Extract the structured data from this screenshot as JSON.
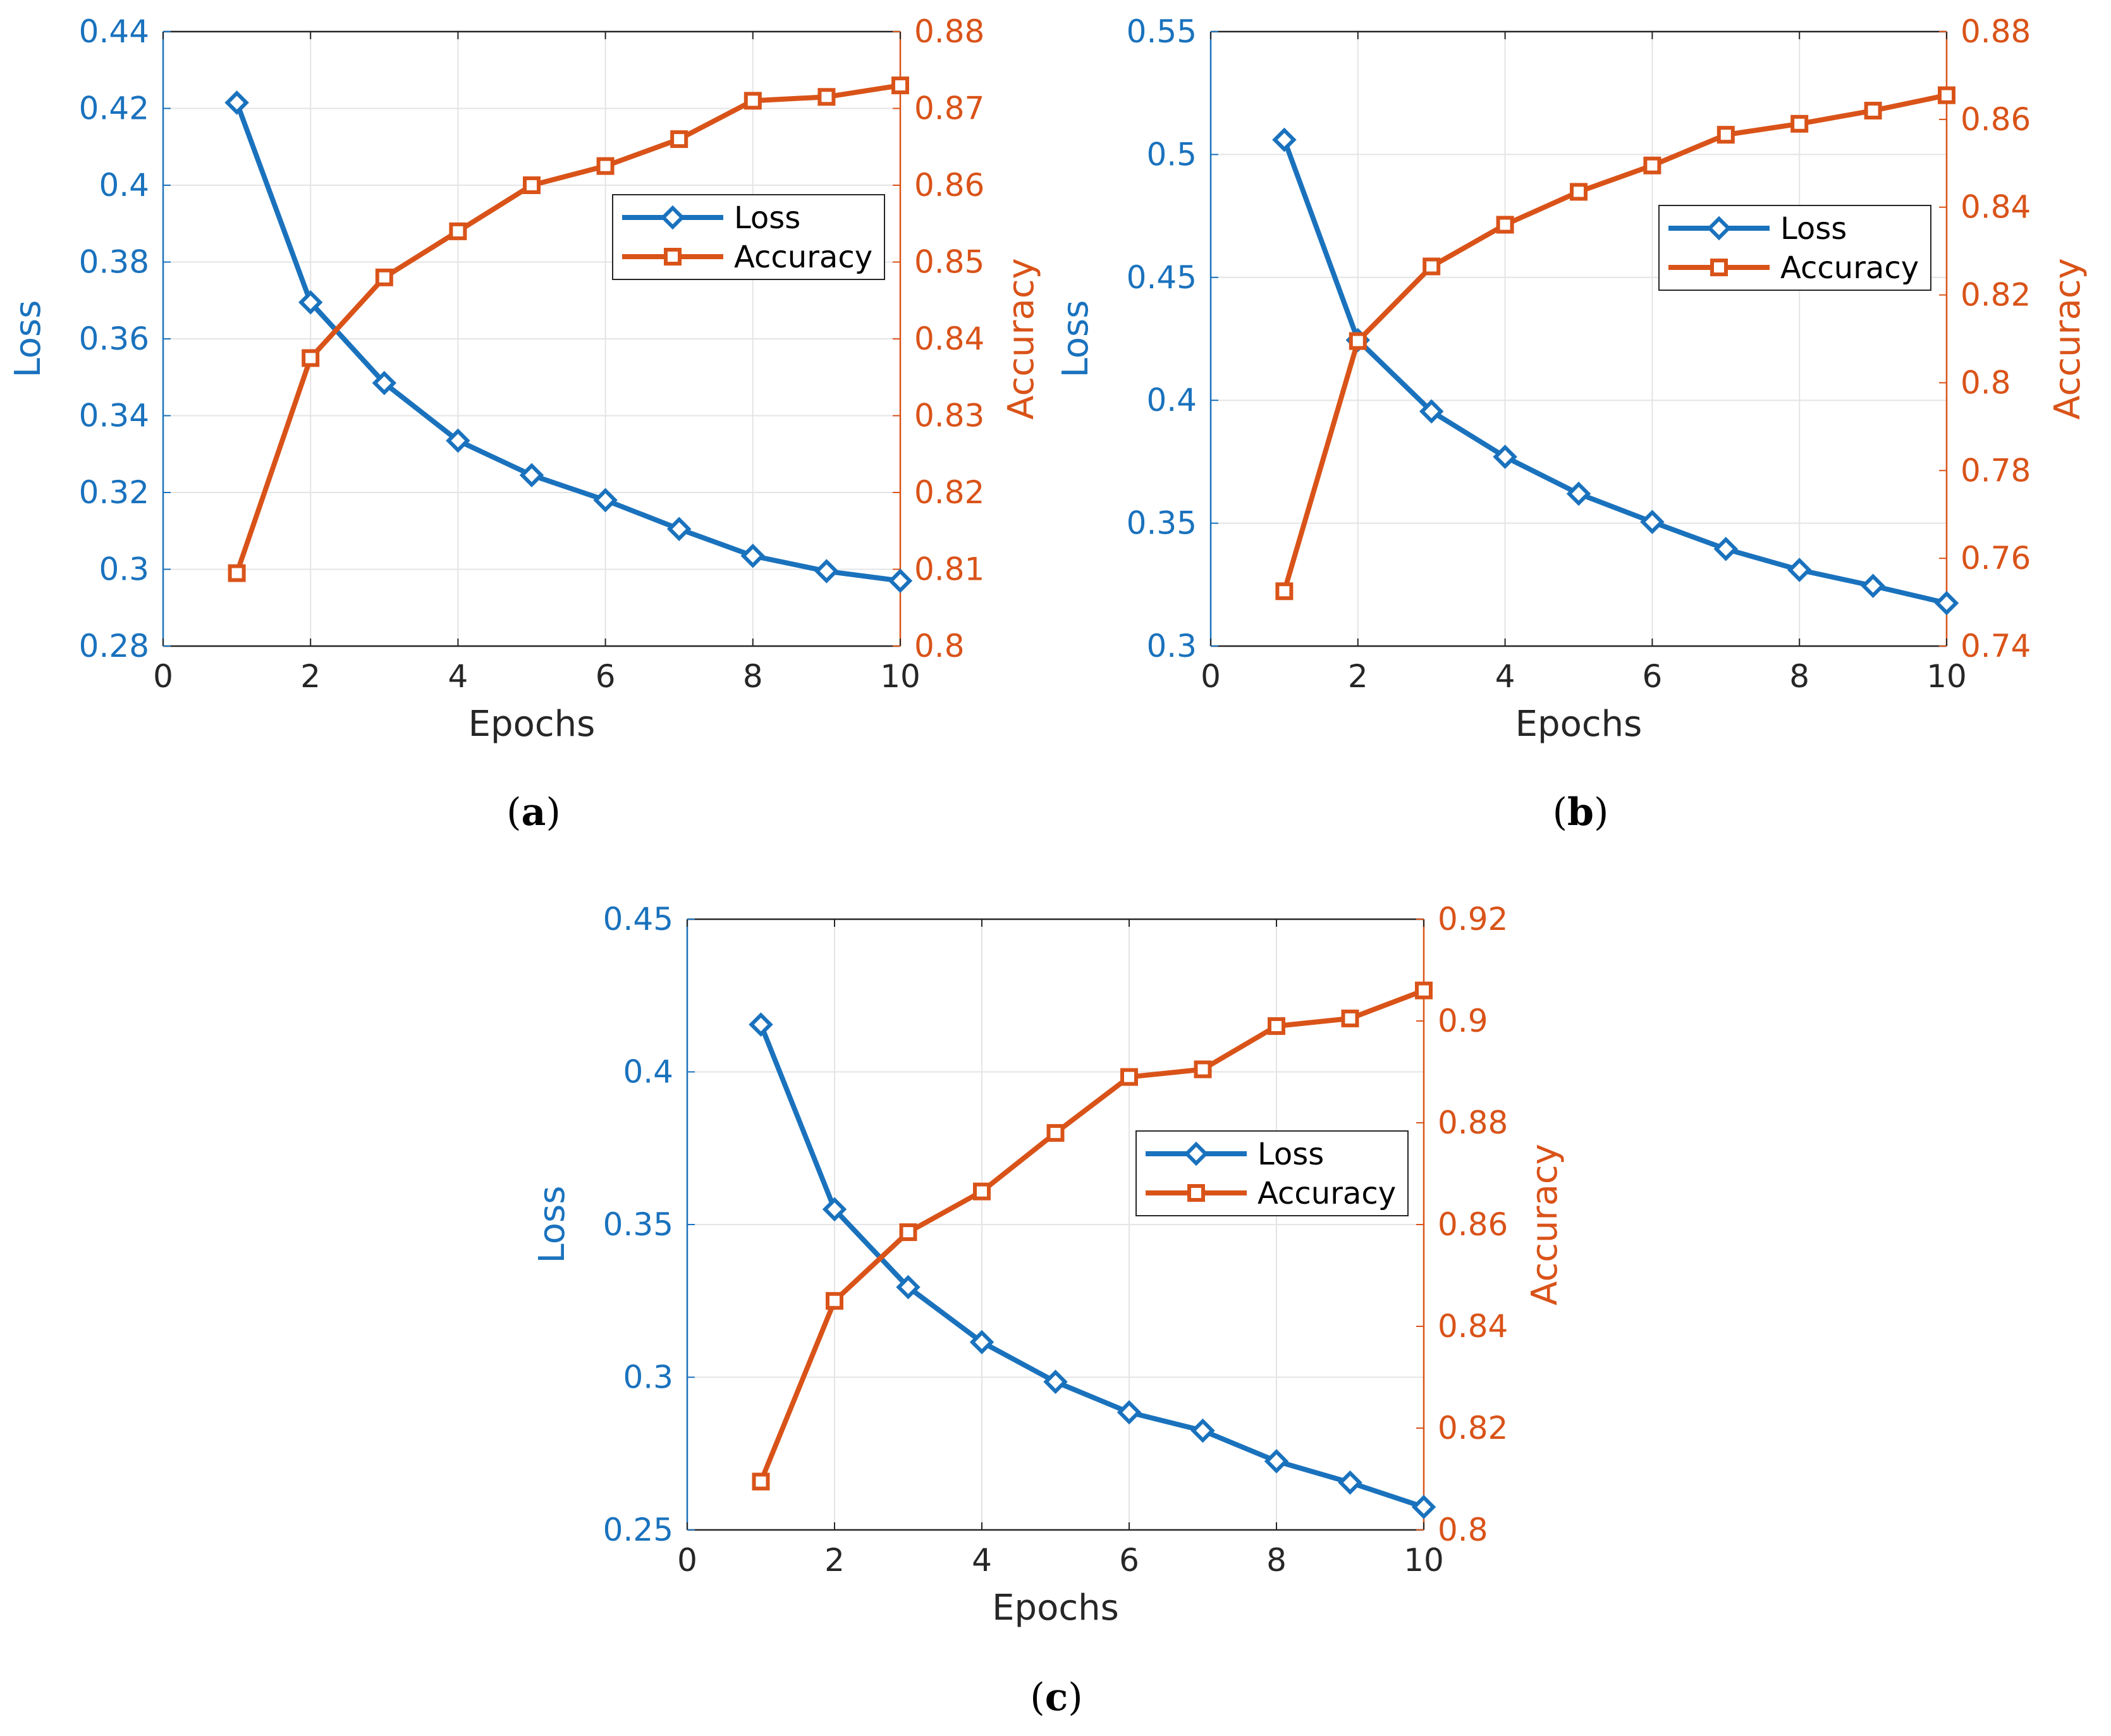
{
  "chart_data": [
    {
      "type": "line",
      "caption_letter": "a",
      "xlabel": "Epochs",
      "ylabel_left": "Loss",
      "ylabel_right": "Accuracy",
      "xlim": [
        0,
        10
      ],
      "x_ticks": [
        "0",
        "2",
        "4",
        "6",
        "8",
        "10"
      ],
      "ylim_left": [
        0.28,
        0.44
      ],
      "y_ticks_left": [
        "0.28",
        "0.3",
        "0.32",
        "0.34",
        "0.36",
        "0.38",
        "0.4",
        "0.42",
        "0.44"
      ],
      "ylim_right": [
        0.8,
        0.88
      ],
      "y_ticks_right": [
        "0.8",
        "0.81",
        "0.82",
        "0.83",
        "0.84",
        "0.85",
        "0.86",
        "0.87",
        "0.88"
      ],
      "grid": true,
      "legend_position": "center-right",
      "x": [
        1,
        2,
        3,
        4,
        5,
        6,
        7,
        8,
        9,
        10
      ],
      "series": [
        {
          "name": "Loss",
          "axis": "left",
          "color": "#1a72bd",
          "marker": "diamond",
          "values": [
            0.4215,
            0.3695,
            0.3485,
            0.3335,
            0.3245,
            0.318,
            0.3105,
            0.3035,
            0.2995,
            0.297
          ]
        },
        {
          "name": "Accuracy",
          "axis": "right",
          "color": "#d95319",
          "marker": "square",
          "values": [
            0.8095,
            0.8375,
            0.848,
            0.854,
            0.86,
            0.8625,
            0.866,
            0.871,
            0.8715,
            0.873
          ]
        }
      ]
    },
    {
      "type": "line",
      "caption_letter": "b",
      "xlabel": "Epochs",
      "ylabel_left": "Loss",
      "ylabel_right": "Accuracy",
      "xlim": [
        0,
        10
      ],
      "x_ticks": [
        "0",
        "2",
        "4",
        "6",
        "8",
        "10"
      ],
      "ylim_left": [
        0.3,
        0.55
      ],
      "y_ticks_left": [
        "0.3",
        "0.35",
        "0.4",
        "0.45",
        "0.5",
        "0.55"
      ],
      "ylim_right": [
        0.74,
        0.88
      ],
      "y_ticks_right": [
        "0.74",
        "0.76",
        "0.78",
        "0.8",
        "0.82",
        "0.84",
        "0.86",
        "0.88"
      ],
      "grid": true,
      "legend_position": "center-right",
      "x": [
        1,
        2,
        3,
        4,
        5,
        6,
        7,
        8,
        9,
        10
      ],
      "series": [
        {
          "name": "Loss",
          "axis": "left",
          "color": "#1a72bd",
          "marker": "diamond",
          "values": [
            0.506,
            0.4245,
            0.3955,
            0.377,
            0.362,
            0.3505,
            0.3395,
            0.331,
            0.3245,
            0.3175
          ]
        },
        {
          "name": "Accuracy",
          "axis": "right",
          "color": "#d95319",
          "marker": "square",
          "values": [
            0.7525,
            0.8095,
            0.8265,
            0.836,
            0.8435,
            0.8495,
            0.8565,
            0.859,
            0.862,
            0.8655
          ]
        }
      ]
    },
    {
      "type": "line",
      "caption_letter": "c",
      "xlabel": "Epochs",
      "ylabel_left": "Loss",
      "ylabel_right": "Accuracy",
      "xlim": [
        0,
        10
      ],
      "x_ticks": [
        "0",
        "2",
        "4",
        "6",
        "8",
        "10"
      ],
      "ylim_left": [
        0.25,
        0.45
      ],
      "y_ticks_left": [
        "0.25",
        "0.3",
        "0.35",
        "0.4",
        "0.45"
      ],
      "ylim_right": [
        0.8,
        0.92
      ],
      "y_ticks_right": [
        "0.8",
        "0.82",
        "0.84",
        "0.86",
        "0.88",
        "0.9",
        "0.92"
      ],
      "grid": true,
      "legend_position": "center-right",
      "x": [
        1,
        2,
        3,
        4,
        5,
        6,
        7,
        8,
        9,
        10
      ],
      "series": [
        {
          "name": "Loss",
          "axis": "left",
          "color": "#1a72bd",
          "marker": "diamond",
          "values": [
            0.4155,
            0.355,
            0.3295,
            0.3115,
            0.2985,
            0.2885,
            0.2825,
            0.2725,
            0.2655,
            0.2575
          ]
        },
        {
          "name": "Accuracy",
          "axis": "right",
          "color": "#d95319",
          "marker": "square",
          "values": [
            0.8095,
            0.845,
            0.8585,
            0.8665,
            0.878,
            0.889,
            0.8905,
            0.899,
            0.9005,
            0.906
          ]
        }
      ]
    }
  ]
}
